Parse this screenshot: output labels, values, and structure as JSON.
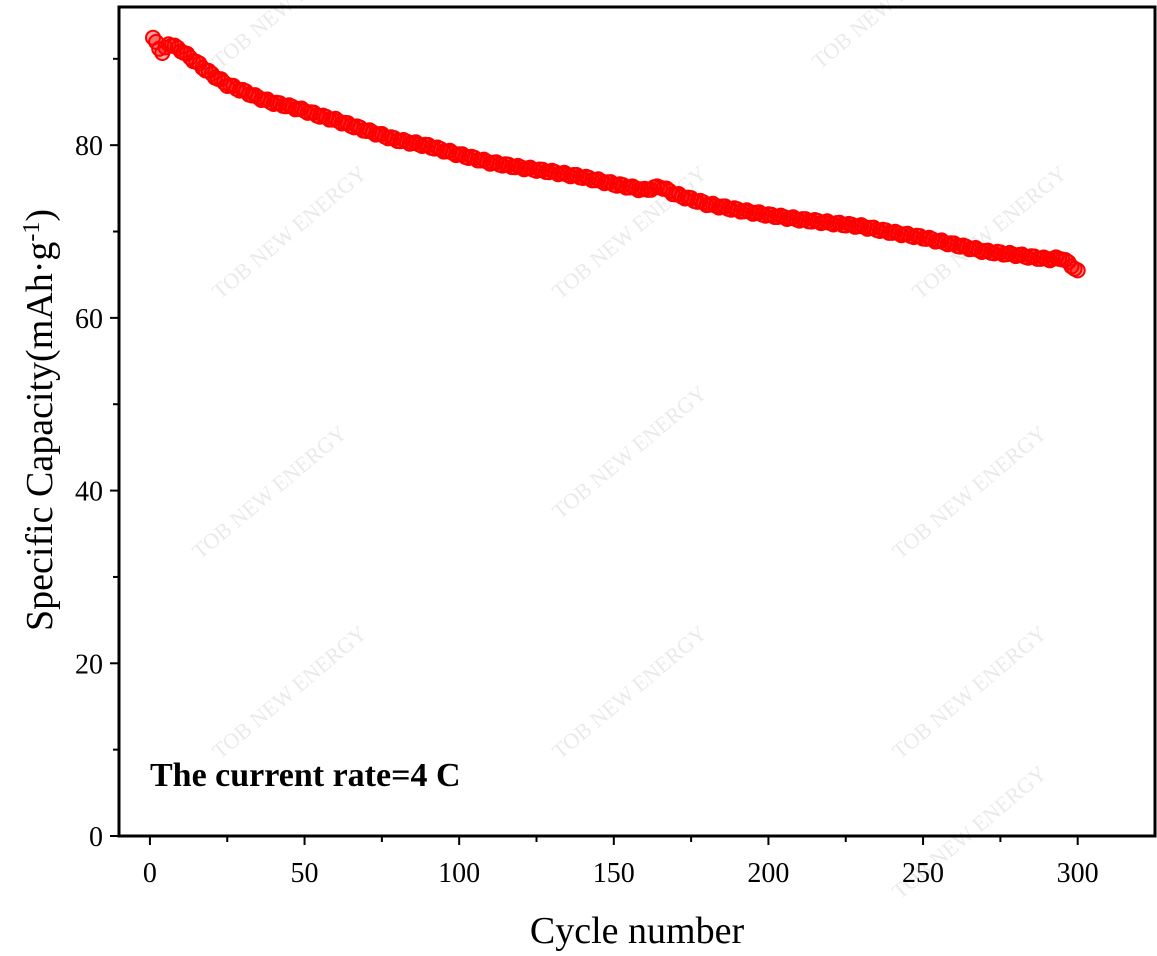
{
  "watermark_text": "TOB NEW ENERGY",
  "chart_data": {
    "type": "scatter",
    "title": "",
    "xlabel": "Cycle number",
    "ylabel": "Specific Capacity(mAh·g",
    "ylabel_sup": "-1",
    "ylabel_close": ")",
    "xlim": [
      -10,
      325
    ],
    "ylim": [
      0,
      96
    ],
    "xticks": [
      0,
      50,
      100,
      150,
      200,
      250,
      300
    ],
    "xtick_labels": [
      "0",
      "50",
      "100",
      "150",
      "200",
      "250",
      "300"
    ],
    "yticks": [
      0,
      20,
      40,
      60,
      80
    ],
    "ytick_labels": [
      "0",
      "20",
      "40",
      "60",
      "80"
    ],
    "grid": false,
    "annotation": "The current rate=4 C",
    "marker_color": "#ff0000",
    "series": [
      {
        "name": "Specific capacity",
        "x": [
          1,
          2,
          4,
          6,
          10,
          15,
          20,
          25,
          30,
          35,
          40,
          45,
          50,
          55,
          60,
          70,
          80,
          90,
          100,
          110,
          120,
          130,
          140,
          150,
          160,
          165,
          170,
          180,
          190,
          200,
          210,
          220,
          230,
          240,
          250,
          260,
          270,
          280,
          290,
          295,
          300
        ],
        "y": [
          92.3,
          92.0,
          90.6,
          91.8,
          91.0,
          89.6,
          88.2,
          87.0,
          86.3,
          85.5,
          84.9,
          84.5,
          84.0,
          83.4,
          82.9,
          81.7,
          80.6,
          79.9,
          78.9,
          78.0,
          77.4,
          76.9,
          76.3,
          75.5,
          74.8,
          75.2,
          74.3,
          73.2,
          72.5,
          71.9,
          71.4,
          71.0,
          70.6,
          69.9,
          69.3,
          68.5,
          67.7,
          67.3,
          66.8,
          66.9,
          65.5
        ]
      }
    ]
  }
}
